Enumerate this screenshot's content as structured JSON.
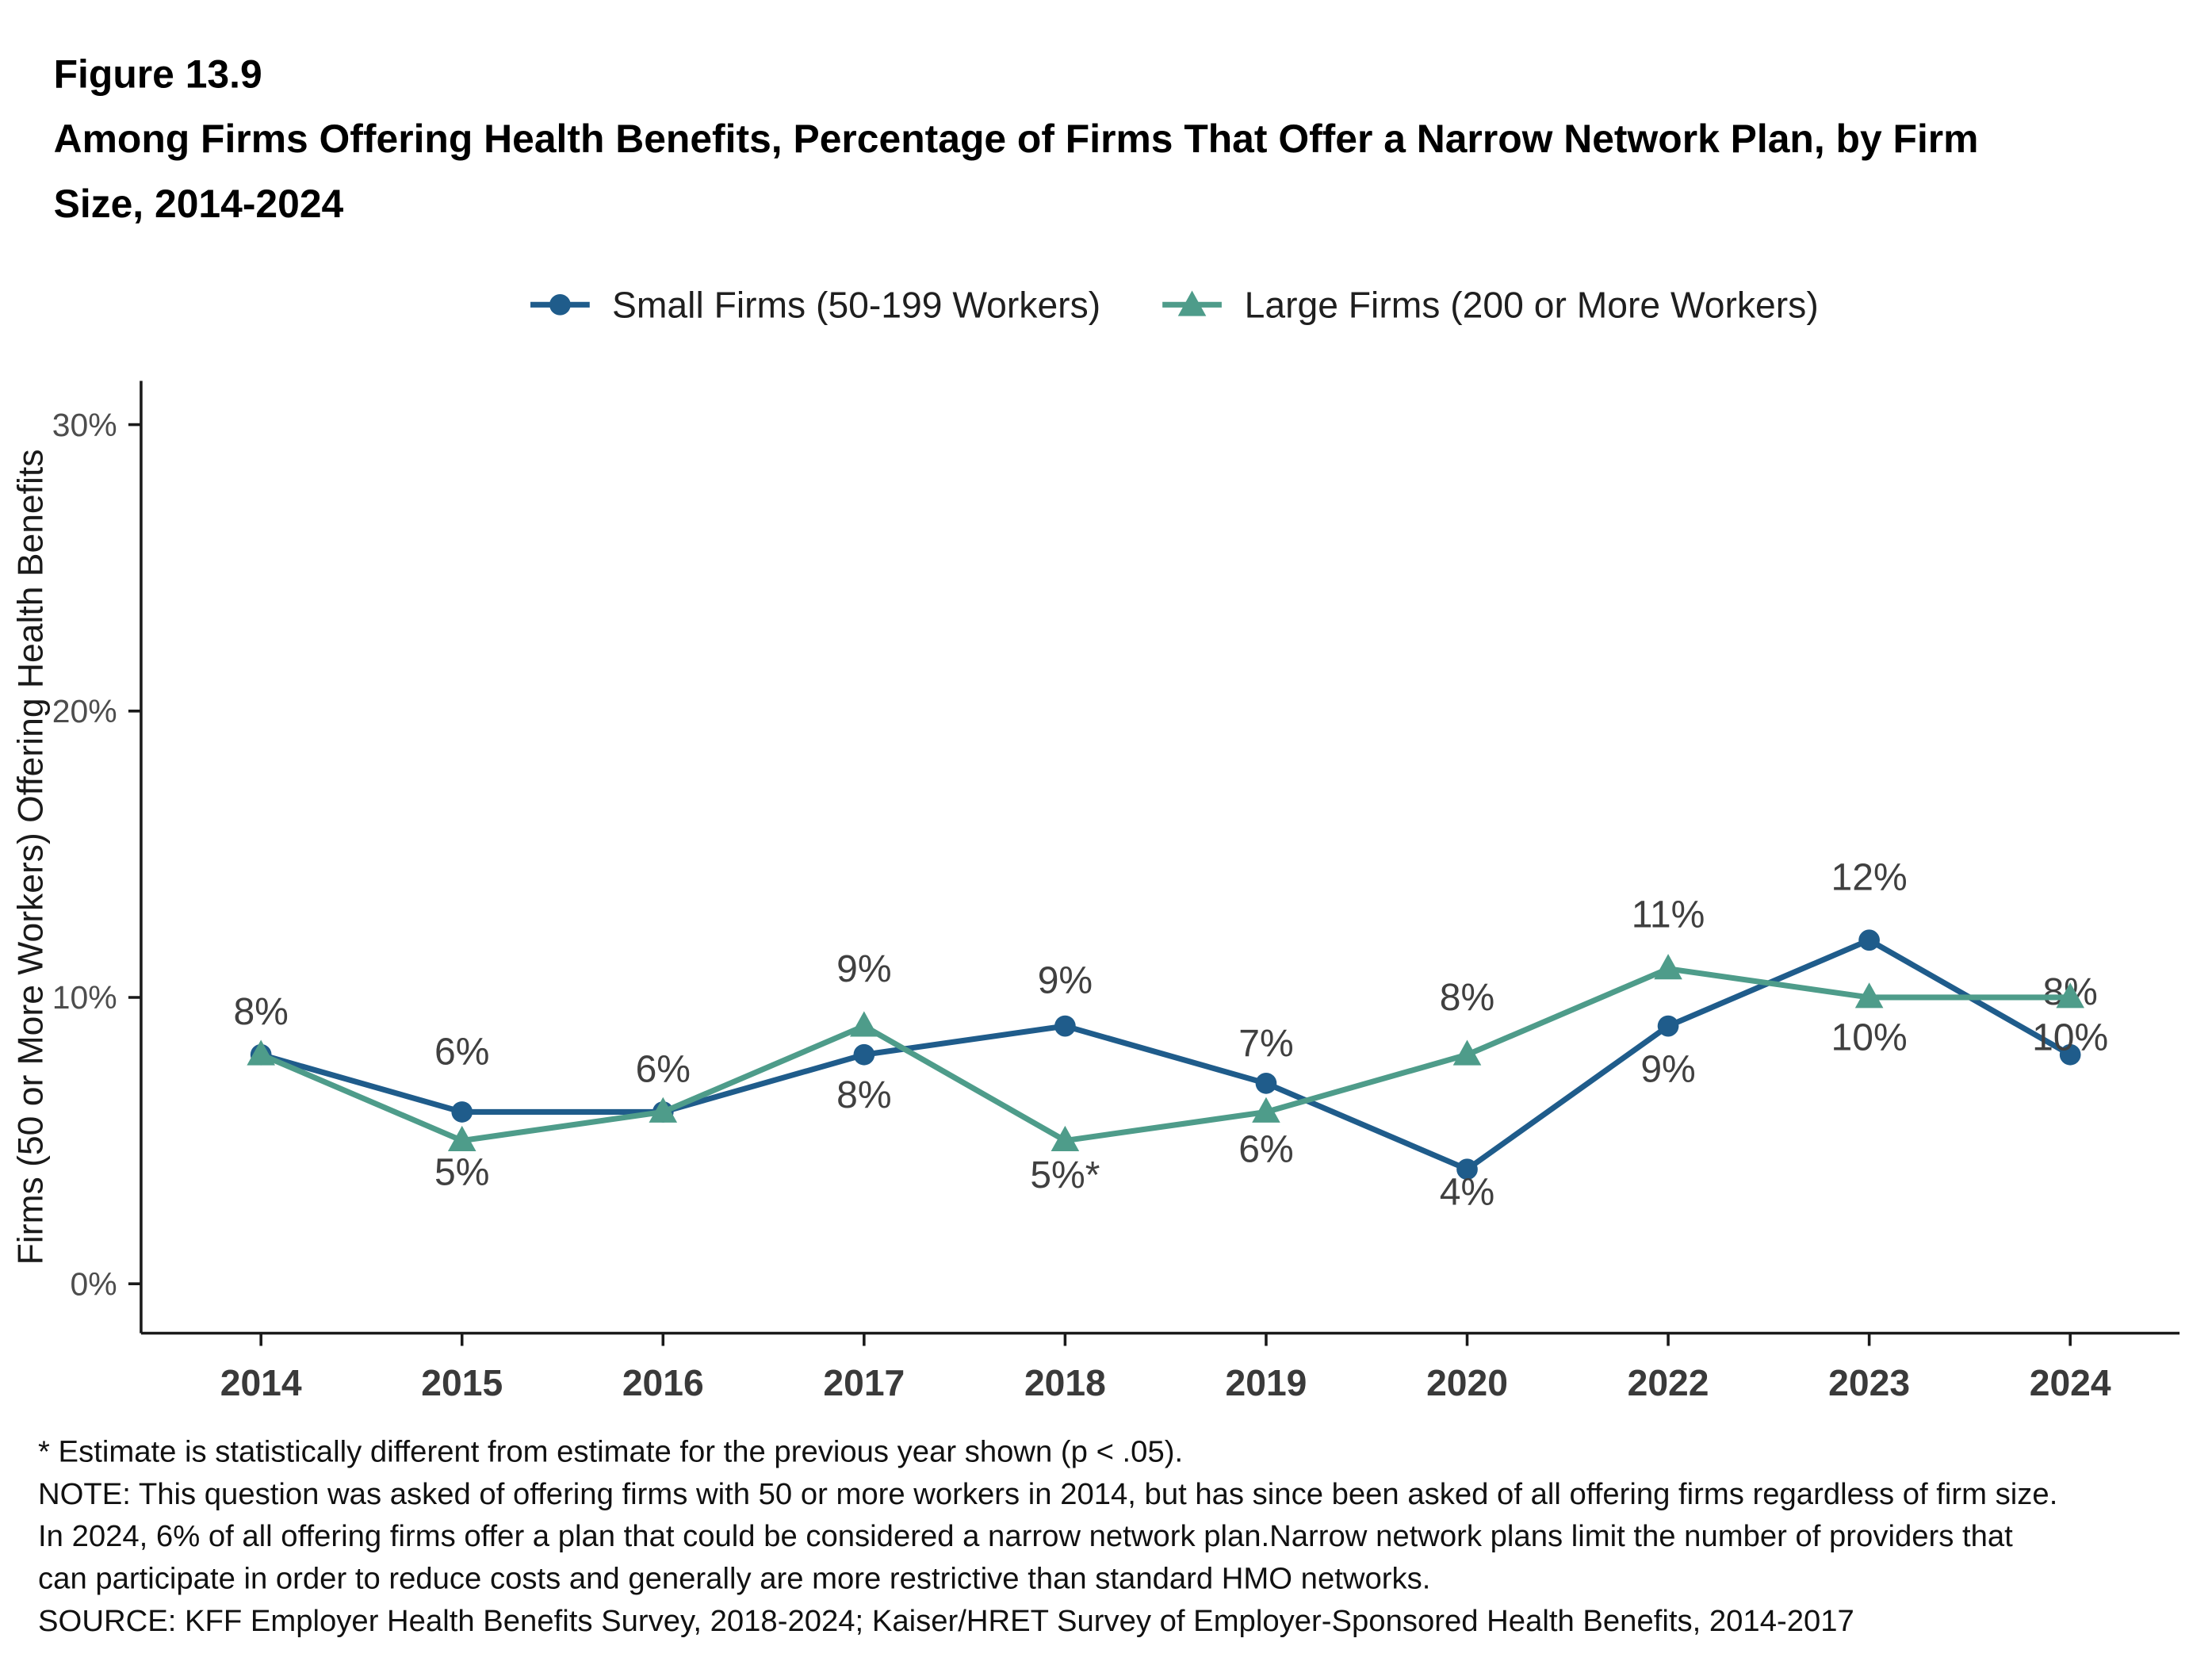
{
  "figure": {
    "number": "Figure 13.9",
    "title": "Among Firms Offering Health Benefits, Percentage of Firms That Offer a Narrow Network Plan, by Firm Size, 2014-2024"
  },
  "colors": {
    "small_firms": "#1F5C8B",
    "large_firms": "#4E9C8A",
    "axis": "#1a1a1a",
    "tick_label": "#4d4d4d",
    "year_label": "#3a3a3a",
    "value_label": "#404040"
  },
  "legend": [
    {
      "label": "Small Firms (50-199 Workers)",
      "color": "#1F5C8B",
      "marker": "circle"
    },
    {
      "label": "Large Firms (200 or More Workers)",
      "color": "#4E9C8A",
      "marker": "triangle"
    }
  ],
  "chart_data": {
    "type": "line",
    "title": "Among Firms Offering Health Benefits, Percentage of Firms That Offer a Narrow Network Plan, by Firm Size, 2014-2024",
    "categories": [
      "2014",
      "2015",
      "2016",
      "2017",
      "2018",
      "2019",
      "2020",
      "2022",
      "2023",
      "2024"
    ],
    "series": [
      {
        "name": "Small Firms (50-199 Workers)",
        "color": "#1F5C8B",
        "marker": "circle",
        "values": [
          8,
          6,
          6,
          8,
          9,
          7,
          4,
          9,
          12,
          8
        ],
        "labels": [
          {
            "text": "8%",
            "y": 9.5
          },
          {
            "text": "6%",
            "y": 8.1
          },
          {
            "text": "6%",
            "y": 7.5
          },
          {
            "text": "8%",
            "y": 6.6
          },
          {
            "text": "9%",
            "y": 10.6
          },
          {
            "text": "7%",
            "y": 8.4
          },
          {
            "text": "4%",
            "y": 3.2
          },
          {
            "text": "9%",
            "y": 7.5
          },
          {
            "text": "12%",
            "y": 14.2
          },
          {
            "text": "8%",
            "y": 10.2
          }
        ]
      },
      {
        "name": "Large Firms (200 or More Workers)",
        "color": "#4E9C8A",
        "marker": "triangle",
        "values": [
          8,
          5,
          6,
          9,
          5,
          6,
          8,
          11,
          10,
          10
        ],
        "labels": [
          null,
          {
            "text": "5%",
            "y": 3.9
          },
          null,
          {
            "text": "9%",
            "y": 11.0
          },
          {
            "text": "5%*",
            "y": 3.8
          },
          {
            "text": "6%",
            "y": 4.7
          },
          {
            "text": "8%",
            "y": 10.0
          },
          {
            "text": "11%",
            "y": 12.9
          },
          {
            "text": "10%",
            "y": 8.6
          },
          {
            "text": "10%",
            "y": 8.6
          }
        ]
      }
    ],
    "xlabel": "",
    "ylabel": "Firms (50 or More Workers) Offering Health Benefits",
    "yticks": [
      0,
      10,
      20,
      30
    ],
    "ytick_labels": [
      "0%",
      "10%",
      "20%",
      "30%"
    ],
    "ylim": [
      -1.7,
      31.5
    ],
    "grid": false,
    "legend_position": "top"
  },
  "footnotes": {
    "asterisk": "* Estimate is statistically different from estimate for the previous year shown (p < .05).",
    "note": "NOTE: This question was asked of offering firms with 50 or more workers in 2014, but has since been asked of all offering firms regardless of firm size. In 2024, 6% of all offering firms offer a plan that could be considered a narrow network plan.Narrow network plans limit the number of providers that can participate in order to reduce costs and generally are more restrictive than standard HMO networks.",
    "source": "SOURCE: KFF Employer Health Benefits Survey, 2018-2024; Kaiser/HRET Survey of Employer-Sponsored Health Benefits, 2014-2017"
  }
}
